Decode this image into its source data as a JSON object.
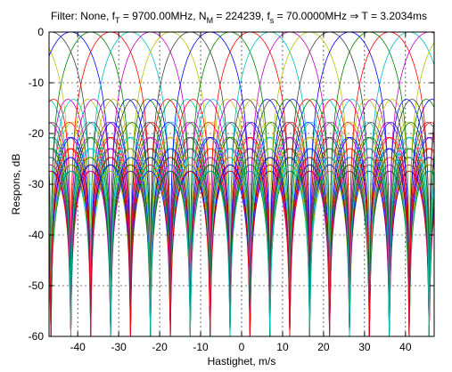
{
  "chart_data": {
    "type": "line",
    "title_parts": {
      "p1": "Filter: None, f",
      "s1": "T",
      "p2": " =  9700.00MHz, N",
      "s2": "M",
      "p3": " = 224239, f",
      "s3": "s",
      "p4": " =  70.0000MHz ",
      "arrow": "⇒",
      "p5": " T =   3.2034ms"
    },
    "xlabel": "Hastighet, m/s",
    "ylabel": "Respons, dB",
    "xlim": [
      -47,
      47
    ],
    "ylim": [
      -60,
      0
    ],
    "xticks": [
      -40,
      -30,
      -20,
      -10,
      0,
      10,
      20,
      30,
      40
    ],
    "yticks": [
      0,
      -10,
      -20,
      -30,
      -40,
      -50,
      -60
    ],
    "grid": "dotted",
    "series": {
      "count": 32,
      "velocity_spacing_mps": 4.86,
      "main_peak_db": 0,
      "first_sidelobe_db": -14,
      "floor_db": -60,
      "colors": [
        "#0000ff",
        "#008000",
        "#ff0000",
        "#00bfbf",
        "#bf00bf",
        "#bfbf00",
        "#404040"
      ]
    }
  }
}
